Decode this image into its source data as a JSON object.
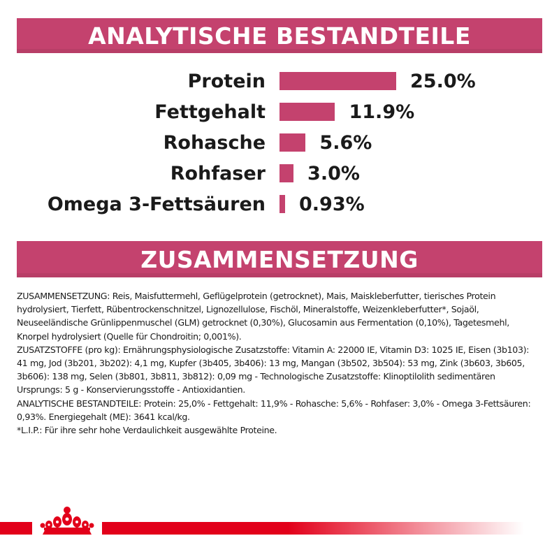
{
  "sections": {
    "analytic_title": "ANALYTISCHE BESTANDTEILE",
    "composition_title": "ZUSAMMENSETZUNG"
  },
  "nutrients": [
    {
      "label": "Protein",
      "value_text": "25.0%",
      "value": 25.0
    },
    {
      "label": "Fettgehalt",
      "value_text": "11.9%",
      "value": 11.9
    },
    {
      "label": "Rohasche",
      "value_text": "5.6%",
      "value": 5.6
    },
    {
      "label": "Rohfaser",
      "value_text": "3.0%",
      "value": 3.0
    },
    {
      "label": "Omega 3-Fettsäuren",
      "value_text": "0.93%",
      "value": 0.93
    }
  ],
  "composition_text": {
    "ingredients": "ZUSAMMENSETZUNG: Reis, Maisfuttermehl, Geflügelprotein (getrocknet), Mais, Maiskleberfutter, tierisches Protein hydrolysiert, Tierfett, Rübentrockenschnitzel, Lignozellulose, Fischöl, Mineralstoffe, Weizenkleberfutter*, Sojaöl, Neuseeländische Grünlippenmuschel (GLM) getrocknet (0,30%), Glucosamin aus Fermentation (0,10%), Tagetesmehl, Knorpel hydrolysiert (Quelle für Chondroitin; 0,001%).",
    "additives": "ZUSATZSTOFFE (pro kg): Ernährungsphysiologische Zusatzstoffe: Vitamin A: 22000 IE, Vitamin D3: 1025 IE, Eisen (3b103): 41 mg, Jod (3b201, 3b202): 4,1 mg, Kupfer (3b405, 3b406): 13 mg, Mangan (3b502, 3b504): 53 mg, Zink (3b603, 3b605, 3b606): 138 mg, Selen (3b801, 3b811, 3b812): 0,09 mg - Technologische Zusatzstoffe: Klinoptilolith sedimentären Ursprungs: 5 g - Konservierungsstoffe - Antioxidantien.",
    "analytic": "ANALYTISCHE BESTANDTEILE: Protein: 25,0% - Fettgehalt: 11,9% - Rohasche: 5,6% - Rohfaser: 3,0% - Omega 3-Fettsäuren: 0,93%. Energiegehalt (ME): 3641 kcal/kg.",
    "footnote": "*L.I.P.: Für ihre sehr hohe Verdaulichkeit ausgewählte Proteine."
  },
  "colors": {
    "banner": "#c4426e",
    "bar": "#c4426e",
    "brand_red": "#e2001a"
  },
  "icons": {
    "brand": "crown-logo"
  }
}
